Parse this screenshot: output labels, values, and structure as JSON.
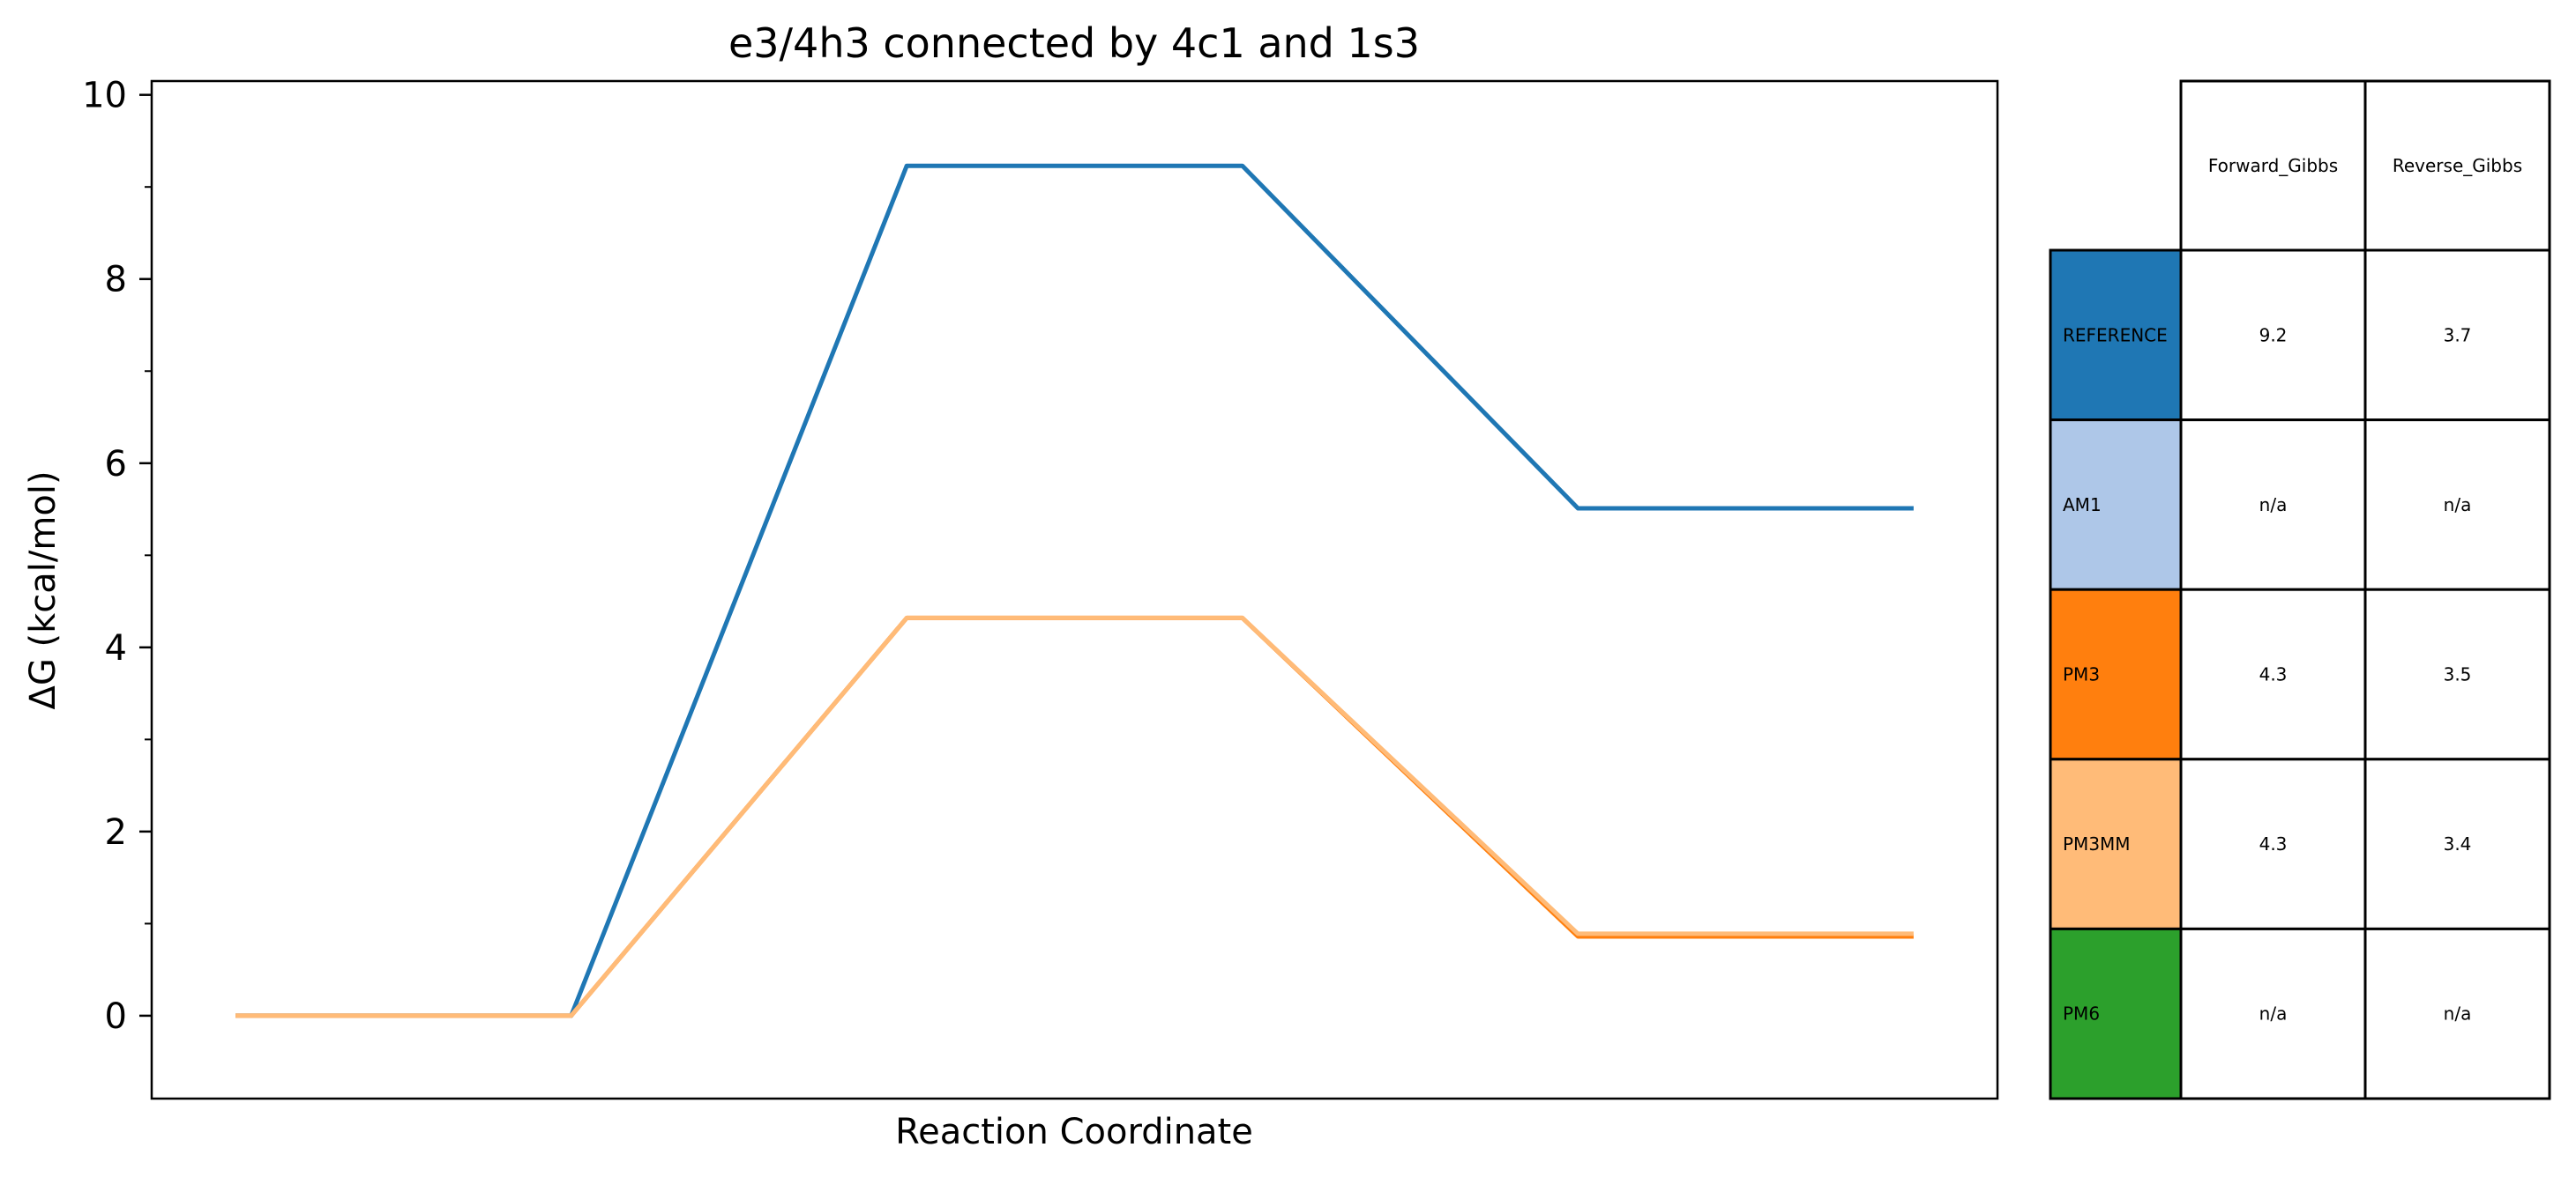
{
  "chart_data": {
    "type": "line",
    "title": "e3/4h3 connected by 4c1 and 1s3",
    "xlabel": "Reaction Coordinate",
    "ylabel": "ΔG (kcal/mol)",
    "x": [
      0,
      1,
      2,
      3,
      4,
      5
    ],
    "xlim": [
      -0.25,
      5.25
    ],
    "ylim": [
      -0.9,
      10.15
    ],
    "yticks": [
      0,
      2,
      4,
      6,
      8,
      10
    ],
    "yticks_minor": [
      1,
      3,
      5,
      7,
      9
    ],
    "xticks": [],
    "grid": false,
    "series": [
      {
        "name": "REFERENCE",
        "color": "#1f77b4",
        "values": [
          0,
          0,
          9.23,
          9.23,
          5.51,
          5.51
        ]
      },
      {
        "name": "PM3",
        "color": "#ff7f0e",
        "values": [
          0,
          0,
          4.32,
          4.32,
          0.86,
          0.86
        ]
      },
      {
        "name": "PM3MM",
        "color": "#ffbb78",
        "values": [
          0,
          0,
          4.32,
          4.32,
          0.89,
          0.89
        ]
      }
    ]
  },
  "table": {
    "columns": [
      "Forward_Gibbs",
      "Reverse_Gibbs"
    ],
    "rows": [
      {
        "label": "REFERENCE",
        "color": "#1f77b4",
        "cells": [
          "9.2",
          "3.7"
        ]
      },
      {
        "label": "AM1",
        "color": "#aec7e8",
        "cells": [
          "n/a",
          "n/a"
        ]
      },
      {
        "label": "PM3",
        "color": "#ff7f0e",
        "cells": [
          "4.3",
          "3.5"
        ]
      },
      {
        "label": "PM3MM",
        "color": "#ffbb78",
        "cells": [
          "4.3",
          "3.4"
        ]
      },
      {
        "label": "PM6",
        "color": "#2ca02c",
        "cells": [
          "n/a",
          "n/a"
        ]
      }
    ]
  }
}
